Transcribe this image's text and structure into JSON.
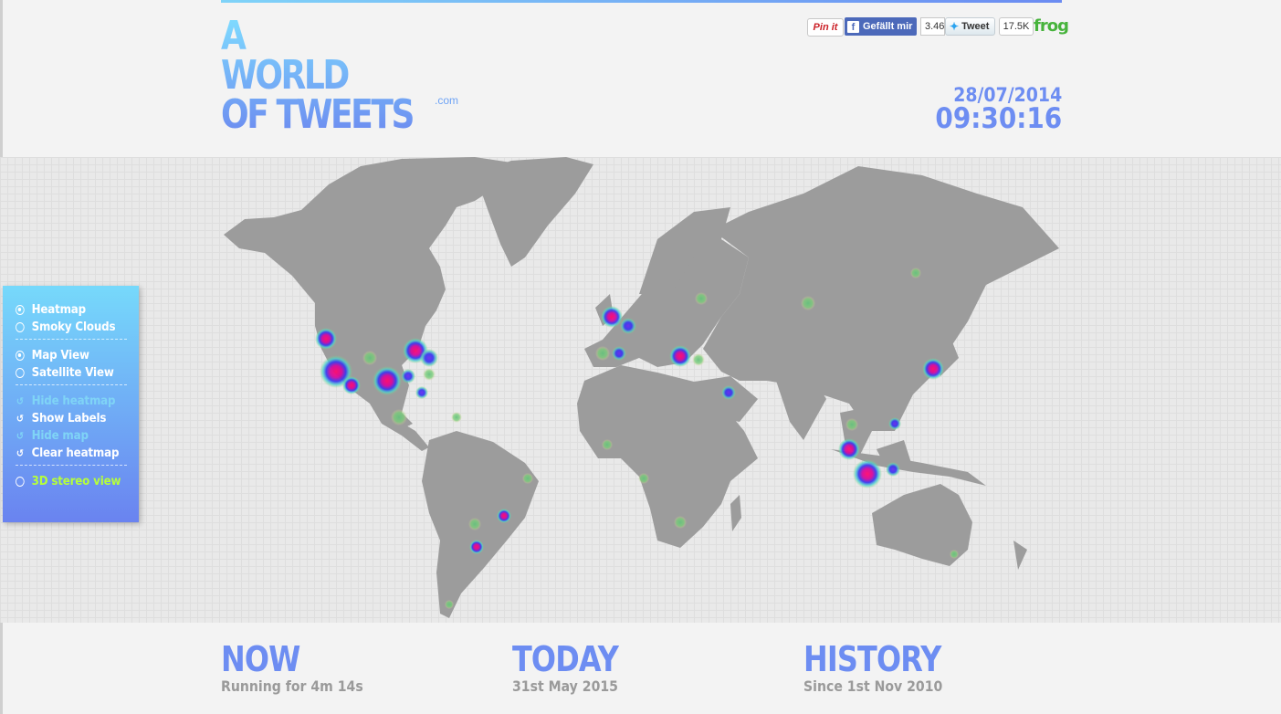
{
  "header": {
    "logo_line1": "A",
    "logo_line2": "WORLD",
    "logo_line3": "OF TWEETS",
    "logo_suffix": ".com",
    "date": "28/07/2014",
    "time": "09:30:16"
  },
  "social": {
    "pinterest_label": "Pin it",
    "facebook_icon": "f",
    "facebook_label": "Gefällt mir",
    "facebook_count": "3.46",
    "tweet_label": "Tweet",
    "tweet_count": "17.5K",
    "brand": "frog"
  },
  "controls": {
    "viz_options": [
      {
        "label": "Heatmap",
        "selected": true
      },
      {
        "label": "Smoky Clouds",
        "selected": false
      }
    ],
    "view_options": [
      {
        "label": "Map View",
        "selected": true
      },
      {
        "label": "Satellite View",
        "selected": false
      }
    ],
    "actions": [
      {
        "label": "Hide heatmap",
        "icon": "reload-icon",
        "state": "dimmed"
      },
      {
        "label": "Show Labels",
        "icon": "reload-icon",
        "state": "normal"
      },
      {
        "label": "Hide map",
        "icon": "reload-icon",
        "state": "dimmed"
      },
      {
        "label": "Clear heatmap",
        "icon": "reload-icon",
        "state": "normal"
      }
    ],
    "stereo": {
      "label": "3D stereo view",
      "selected": false
    }
  },
  "stats": {
    "now_title": "NOW",
    "now_sub": "Running for 4m 14s",
    "today_title": "TODAY",
    "today_sub": "31st May 2015",
    "history_title": "HISTORY",
    "history_sub": "Since 1st Nov 2010"
  },
  "colors": {
    "accent": "#6d8df2",
    "land": "#9c9c9c",
    "heat_hot": "#ff0a6e",
    "heat_mid": "#3a3af0",
    "heat_low": "#63c27a"
  }
}
